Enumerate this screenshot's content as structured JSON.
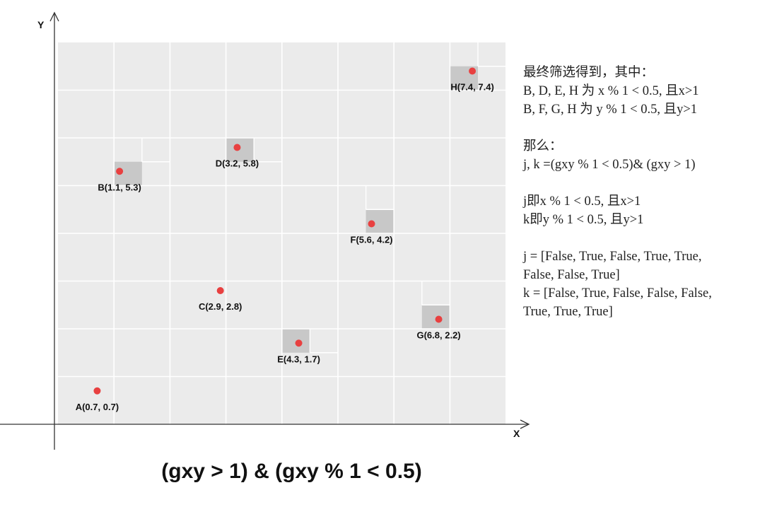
{
  "axes": {
    "x_label": "X",
    "y_label": "Y"
  },
  "points": [
    {
      "name": "A",
      "label": "A(0.7, 0.7)",
      "x": 0.7,
      "y": 0.7,
      "highlighted": false
    },
    {
      "name": "B",
      "label": "B(1.1, 5.3)",
      "x": 1.1,
      "y": 5.3,
      "highlighted": true
    },
    {
      "name": "C",
      "label": "C(2.9, 2.8)",
      "x": 2.9,
      "y": 2.8,
      "highlighted": false
    },
    {
      "name": "D",
      "label": "D(3.2, 5.8)",
      "x": 3.2,
      "y": 5.8,
      "highlighted": true
    },
    {
      "name": "E",
      "label": "E(4.3, 1.7)",
      "x": 4.3,
      "y": 1.7,
      "highlighted": true
    },
    {
      "name": "F",
      "label": "F(5.6, 4.2)",
      "x": 5.6,
      "y": 4.2,
      "highlighted": true
    },
    {
      "name": "G",
      "label": "G(6.8, 2.2)",
      "x": 6.8,
      "y": 2.2,
      "highlighted": true
    },
    {
      "name": "H",
      "label": "H(7.4, 7.4)",
      "x": 7.4,
      "y": 7.4,
      "highlighted": true
    }
  ],
  "colors": {
    "grid_bg": "#ebebeb",
    "grid_line": "#ffffff",
    "highlight": "#c8c8c8",
    "point": "#e84040"
  },
  "notes": {
    "line1": "最终筛选得到，其中：",
    "line2": "B, D, E, H 为 x % 1 < 0.5, 且x>1",
    "line3": "B, F, G, H 为 y % 1 < 0.5, 且y>1",
    "line4": "那么：",
    "line5": "j, k =(gxy % 1 < 0.5)& (gxy > 1)",
    "line6": "j即x % 1 < 0.5, 且x>1",
    "line7": "k即y % 1 < 0.5, 且y>1",
    "line8": "j = [False, True, False, True, True,",
    "line9": "False, False, True]",
    "line10": "k = [False, True, False, False, False,",
    "line11": "True, True, True]"
  },
  "caption": "(gxy > 1) & (gxy % 1 < 0.5)"
}
